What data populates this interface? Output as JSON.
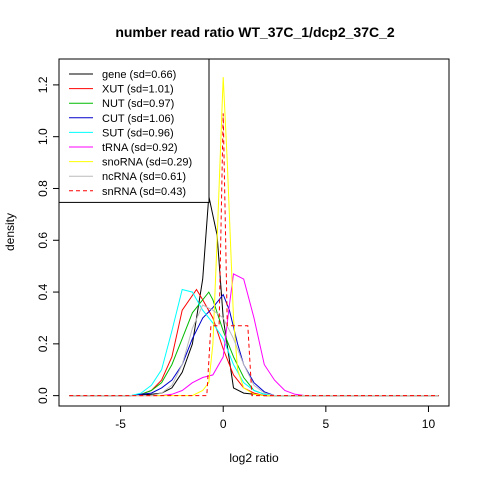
{
  "chart_data": {
    "type": "line",
    "title": "number read ratio WT_37C_1/dcp2_37C_2",
    "xlabel": "log2 ratio",
    "ylabel": "density",
    "xlim": [
      -8.0,
      11.0
    ],
    "ylim": [
      -0.04,
      1.3
    ],
    "x_ticks": [
      -5,
      0,
      5,
      10
    ],
    "x_tick_labels": [
      "-5",
      "0",
      "5",
      "10"
    ],
    "y_ticks": [
      0.0,
      0.2,
      0.4,
      0.6,
      0.8,
      1.0,
      1.2
    ],
    "y_tick_labels": [
      "0.0",
      "0.2",
      "0.4",
      "0.6",
      "0.8",
      "1.0",
      "1.2"
    ],
    "grid": false,
    "legend_position": "top-left",
    "series": [
      {
        "name": "gene (sd=0.66)",
        "color": "#000000",
        "dashed": false,
        "points": [
          [
            -7.5,
            0
          ],
          [
            -4.5,
            0
          ],
          [
            -3.5,
            0.005
          ],
          [
            -3,
            0.01
          ],
          [
            -2.5,
            0.03
          ],
          [
            -2,
            0.09
          ],
          [
            -1.5,
            0.2
          ],
          [
            -1,
            0.45
          ],
          [
            -0.7,
            0.77
          ],
          [
            -0.3,
            0.62
          ],
          [
            0,
            0.3
          ],
          [
            0.5,
            0.03
          ],
          [
            1,
            0.01
          ],
          [
            1.5,
            0.005
          ],
          [
            2,
            0
          ],
          [
            10.5,
            0
          ]
        ]
      },
      {
        "name": "XUT (sd=1.01)",
        "color": "#ff0000",
        "dashed": false,
        "points": [
          [
            -7.5,
            0
          ],
          [
            -4.5,
            0
          ],
          [
            -4,
            0.005
          ],
          [
            -3.5,
            0.02
          ],
          [
            -3,
            0.06
          ],
          [
            -2.5,
            0.15
          ],
          [
            -2,
            0.33
          ],
          [
            -1.3,
            0.41
          ],
          [
            -1,
            0.37
          ],
          [
            -0.5,
            0.3
          ],
          [
            0,
            0.18
          ],
          [
            0.5,
            0.08
          ],
          [
            1,
            0.03
          ],
          [
            1.5,
            0.01
          ],
          [
            2,
            0
          ],
          [
            10.5,
            0
          ]
        ]
      },
      {
        "name": "NUT (sd=0.97)",
        "color": "#00bb00",
        "dashed": false,
        "points": [
          [
            -7.5,
            0
          ],
          [
            -4.5,
            0
          ],
          [
            -4,
            0.005
          ],
          [
            -3.5,
            0.02
          ],
          [
            -3,
            0.05
          ],
          [
            -2.5,
            0.12
          ],
          [
            -2,
            0.22
          ],
          [
            -1.5,
            0.32
          ],
          [
            -0.7,
            0.4
          ],
          [
            -0.5,
            0.37
          ],
          [
            0,
            0.25
          ],
          [
            0.5,
            0.15
          ],
          [
            1,
            0.07
          ],
          [
            1.5,
            0.02
          ],
          [
            2,
            0.005
          ],
          [
            2.5,
            0
          ],
          [
            10.5,
            0
          ]
        ]
      },
      {
        "name": "CUT (sd=1.06)",
        "color": "#0000cc",
        "dashed": false,
        "points": [
          [
            -7.5,
            0
          ],
          [
            -4.5,
            0
          ],
          [
            -4,
            0.005
          ],
          [
            -3.5,
            0.01
          ],
          [
            -3,
            0.03
          ],
          [
            -2.5,
            0.06
          ],
          [
            -2,
            0.12
          ],
          [
            -1.5,
            0.22
          ],
          [
            -1,
            0.3
          ],
          [
            -0.5,
            0.34
          ],
          [
            0,
            0.39
          ],
          [
            0.3,
            0.33
          ],
          [
            0.7,
            0.2
          ],
          [
            1,
            0.12
          ],
          [
            1.5,
            0.05
          ],
          [
            2,
            0.015
          ],
          [
            2.5,
            0
          ],
          [
            10.5,
            0
          ]
        ]
      },
      {
        "name": "SUT (sd=0.96)",
        "color": "#00ffff",
        "dashed": false,
        "points": [
          [
            -7.5,
            0
          ],
          [
            -4.5,
            0
          ],
          [
            -4,
            0.01
          ],
          [
            -3.5,
            0.04
          ],
          [
            -3,
            0.1
          ],
          [
            -2.5,
            0.25
          ],
          [
            -2,
            0.41
          ],
          [
            -1.5,
            0.4
          ],
          [
            -1,
            0.33
          ],
          [
            -0.5,
            0.28
          ],
          [
            0,
            0.22
          ],
          [
            0.5,
            0.12
          ],
          [
            1,
            0.05
          ],
          [
            1.5,
            0.02
          ],
          [
            2,
            0.005
          ],
          [
            2.5,
            0
          ],
          [
            10.5,
            0
          ]
        ]
      },
      {
        "name": "tRNA (sd=0.92)",
        "color": "#ff00ff",
        "dashed": false,
        "points": [
          [
            -7.5,
            0
          ],
          [
            -3,
            0
          ],
          [
            -2.5,
            0.005
          ],
          [
            -2,
            0.02
          ],
          [
            -1.5,
            0.05
          ],
          [
            -1,
            0.07
          ],
          [
            -0.5,
            0.08
          ],
          [
            0,
            0.15
          ],
          [
            0.3,
            0.35
          ],
          [
            0.5,
            0.47
          ],
          [
            1,
            0.45
          ],
          [
            1.5,
            0.3
          ],
          [
            2,
            0.12
          ],
          [
            2.5,
            0.06
          ],
          [
            3,
            0.02
          ],
          [
            3.5,
            0.005
          ],
          [
            4,
            0
          ],
          [
            10.5,
            0
          ]
        ]
      },
      {
        "name": "snoRNA (sd=0.29)",
        "color": "#ffff00",
        "dashed": false,
        "points": [
          [
            -7.5,
            0
          ],
          [
            -1.5,
            0
          ],
          [
            -1,
            0.02
          ],
          [
            -0.7,
            0.05
          ],
          [
            -0.5,
            0.2
          ],
          [
            -0.3,
            0.6
          ],
          [
            0,
            1.23
          ],
          [
            0.2,
            0.9
          ],
          [
            0.5,
            0.3
          ],
          [
            0.7,
            0.1
          ],
          [
            1,
            0.03
          ],
          [
            1.5,
            0.005
          ],
          [
            2,
            0
          ],
          [
            10.5,
            0
          ]
        ]
      },
      {
        "name": "ncRNA (sd=0.61)",
        "color": "#bbbbbb",
        "dashed": false,
        "points": [
          [
            -7.5,
            0
          ],
          [
            -3.5,
            0
          ],
          [
            -3,
            0.01
          ],
          [
            -2.5,
            0.04
          ],
          [
            -2,
            0.12
          ],
          [
            -1.5,
            0.26
          ],
          [
            -1,
            0.35
          ],
          [
            -0.5,
            0.33
          ],
          [
            0,
            0.3
          ],
          [
            0.5,
            0.22
          ],
          [
            1,
            0.12
          ],
          [
            1.5,
            0.04
          ],
          [
            2,
            0.01
          ],
          [
            2.5,
            0
          ],
          [
            10.5,
            0
          ]
        ]
      },
      {
        "name": "snRNA (sd=0.43)",
        "color": "#ff0000",
        "dashed": true,
        "points": [
          [
            -7.5,
            0
          ],
          [
            -0.8,
            0
          ],
          [
            -0.6,
            0.27
          ],
          [
            -0.2,
            0.27
          ],
          [
            0,
            1.09
          ],
          [
            0.2,
            0.27
          ],
          [
            0.5,
            0.27
          ],
          [
            1.2,
            0.27
          ],
          [
            1.4,
            0
          ],
          [
            10.5,
            0
          ]
        ]
      }
    ]
  }
}
